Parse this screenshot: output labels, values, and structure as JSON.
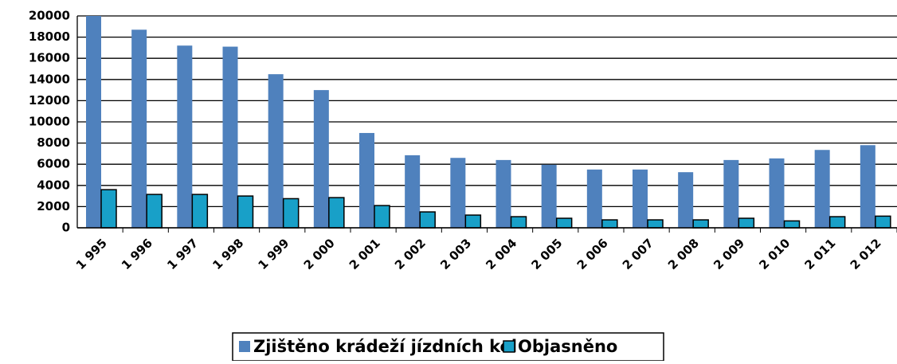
{
  "chart_data": {
    "type": "bar",
    "categories": [
      "1 995",
      "1 996",
      "1 997",
      "1 998",
      "1 999",
      "2 000",
      "2 001",
      "2 002",
      "2 003",
      "2 004",
      "2 005",
      "2 006",
      "2 007",
      "2 008",
      "2 009",
      "2 010",
      "2 011",
      "2 012"
    ],
    "series": [
      {
        "name": "Zjištěno krádeží jízdních kol",
        "color": "#4f81bd",
        "values": [
          20000,
          18700,
          17200,
          17100,
          14500,
          13000,
          8950,
          6850,
          6600,
          6400,
          5950,
          5500,
          5500,
          5250,
          6400,
          6550,
          7350,
          7800
        ]
      },
      {
        "name": "Objasněno",
        "color": "#18a0c8",
        "values": [
          3600,
          3150,
          3150,
          3000,
          2750,
          2850,
          2100,
          1500,
          1200,
          1050,
          900,
          750,
          750,
          750,
          900,
          650,
          1050,
          1100
        ]
      }
    ],
    "ylim": [
      0,
      20000
    ],
    "yticks": [
      0,
      2000,
      4000,
      6000,
      8000,
      10000,
      12000,
      14000,
      16000,
      18000,
      20000
    ],
    "grid": true,
    "legend": "bottom"
  }
}
